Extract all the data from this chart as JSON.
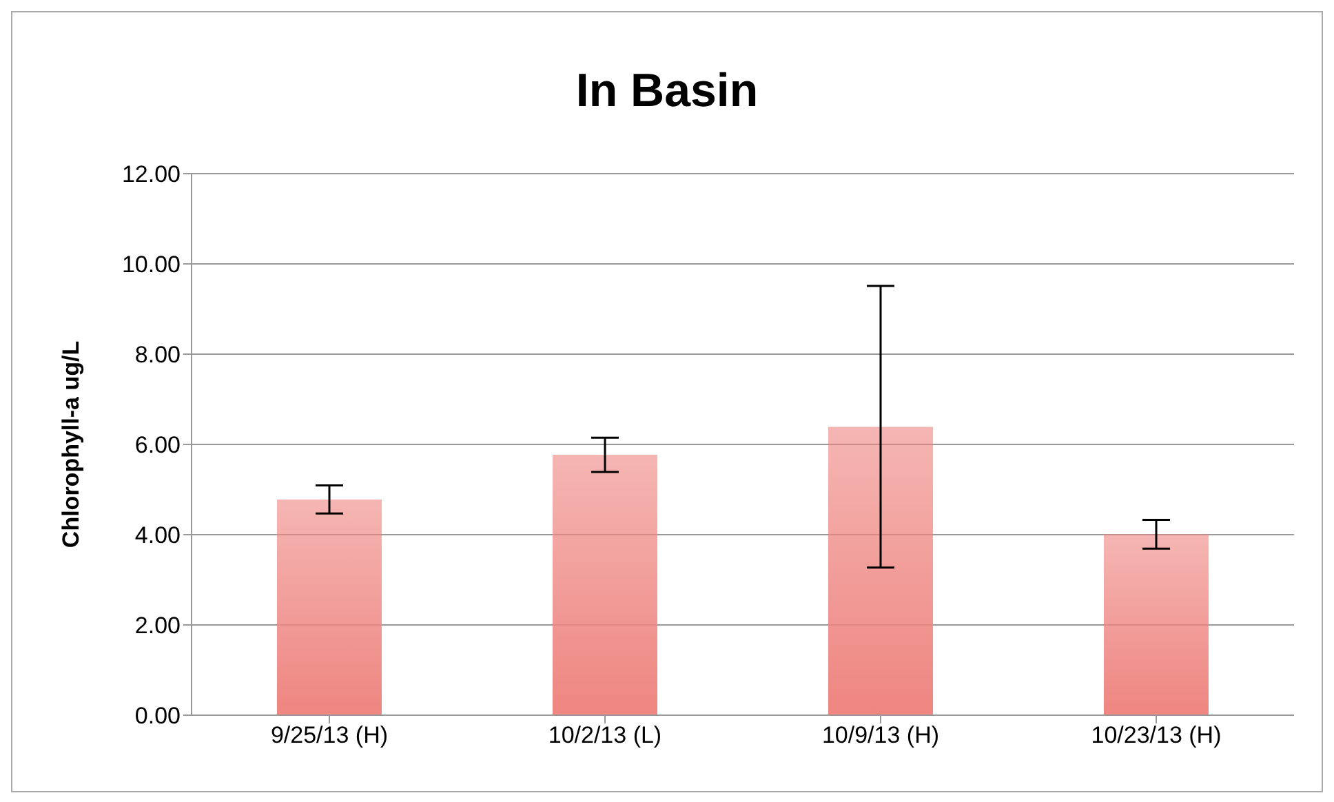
{
  "chart_data": {
    "type": "bar",
    "title": "In Basin",
    "ylabel": "Chlorophyll-a ug/L",
    "categories": [
      "9/25/13 (H)",
      "10/2/13 (L)",
      "10/9/13 (H)",
      "10/23/13 (H)"
    ],
    "values": [
      4.78,
      5.77,
      6.39,
      4.01
    ],
    "errors": [
      0.31,
      0.38,
      3.12,
      0.32
    ],
    "color": "#ee8580",
    "ylim": [
      0,
      12
    ],
    "yticks": [
      {
        "value": 0,
        "label": "0.00"
      },
      {
        "value": 2,
        "label": "2.00"
      },
      {
        "value": 4,
        "label": "4.00"
      },
      {
        "value": 6,
        "label": "6.00"
      },
      {
        "value": 8,
        "label": "8.00"
      },
      {
        "value": 10,
        "label": "10.00"
      },
      {
        "value": 12,
        "label": "12.00"
      }
    ],
    "grid": "y",
    "legend": false
  }
}
